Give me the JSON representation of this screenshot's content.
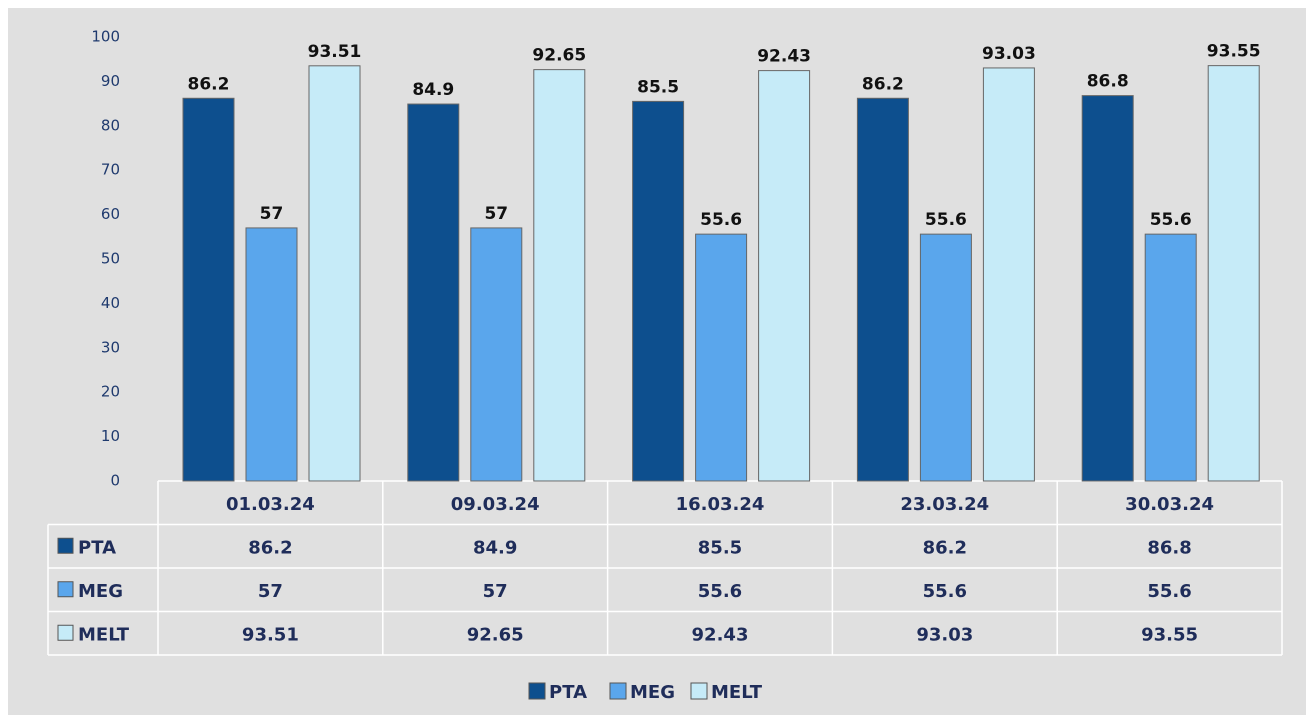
{
  "chart_data": {
    "type": "bar",
    "categories": [
      "01.03.24",
      "09.03.24",
      "16.03.24",
      "23.03.24",
      "30.03.24"
    ],
    "series": [
      {
        "name": "PTA",
        "color": "#0d4f8e",
        "values": [
          86.2,
          84.9,
          85.5,
          86.2,
          86.8
        ]
      },
      {
        "name": "MEG",
        "color": "#5aa6ec",
        "values": [
          57,
          57,
          55.6,
          55.6,
          55.6
        ]
      },
      {
        "name": "MELT",
        "color": "#c6ebf8",
        "values": [
          93.51,
          92.65,
          92.43,
          93.03,
          93.55
        ]
      }
    ],
    "ylim": [
      0,
      100
    ],
    "yticks": [
      0,
      10,
      20,
      30,
      40,
      50,
      60,
      70,
      80,
      90,
      100
    ],
    "grid": false,
    "legend": "bottom",
    "data_table": true
  }
}
